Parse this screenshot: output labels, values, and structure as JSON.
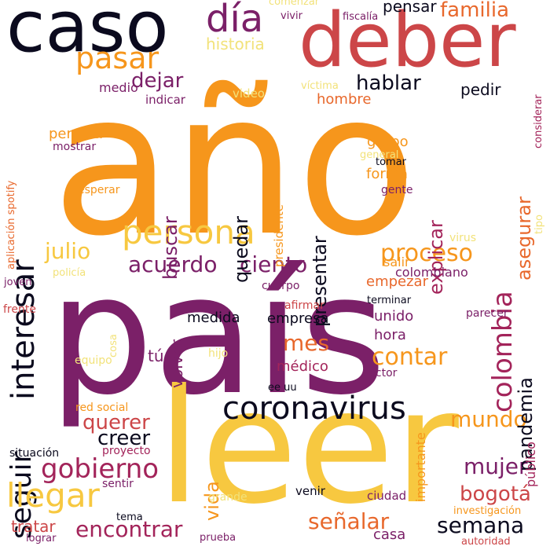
{
  "palette": {
    "dark": "#0b0a1e",
    "purple": "#7b2068",
    "crimson": "#a3245a",
    "red": "#cc4648",
    "orange": "#e8682c",
    "amber": "#f6961c",
    "yellow": "#f7c840",
    "light": "#f2e27a"
  },
  "words": [
    {
      "text": "año",
      "color": "amber"
    },
    {
      "text": "país",
      "color": "purple"
    },
    {
      "text": "leer",
      "color": "yellow"
    },
    {
      "text": "caso",
      "color": "dark"
    },
    {
      "text": "deber",
      "color": "red"
    },
    {
      "text": "persona",
      "color": "yellow"
    },
    {
      "text": "coronavirus",
      "color": "dark"
    },
    {
      "text": "interesar",
      "color": "dark"
    },
    {
      "text": "día",
      "color": "purple"
    },
    {
      "text": "pasar",
      "color": "amber"
    },
    {
      "text": "familia",
      "color": "orange"
    },
    {
      "text": "colombia",
      "color": "crimson"
    },
    {
      "text": "seguir",
      "color": "dark"
    },
    {
      "text": "llegar",
      "color": "yellow"
    },
    {
      "text": "gobierno",
      "color": "crimson"
    },
    {
      "text": "proceso",
      "color": "amber"
    },
    {
      "text": "contar",
      "color": "amber"
    },
    {
      "text": "acuerdo",
      "color": "purple"
    },
    {
      "text": "ciento",
      "color": "purple"
    },
    {
      "text": "mes",
      "color": "orange"
    },
    {
      "text": "querer",
      "color": "red"
    },
    {
      "text": "creer",
      "color": "dark"
    },
    {
      "text": "mundo",
      "color": "amber"
    },
    {
      "text": "encontrar",
      "color": "crimson"
    },
    {
      "text": "señalar",
      "color": "orange"
    },
    {
      "text": "semana",
      "color": "dark"
    },
    {
      "text": "mujer",
      "color": "purple"
    },
    {
      "text": "bogotá",
      "color": "red"
    },
    {
      "text": "julio",
      "color": "yellow"
    },
    {
      "text": "hablar",
      "color": "dark"
    },
    {
      "text": "dejar",
      "color": "purple"
    },
    {
      "text": "pandemia",
      "color": "dark"
    },
    {
      "text": "explicar",
      "color": "crimson"
    },
    {
      "text": "asegurar",
      "color": "orange"
    },
    {
      "text": "presentar",
      "color": "dark"
    },
    {
      "text": "quedar",
      "color": "dark"
    },
    {
      "text": "buscar",
      "color": "purple"
    },
    {
      "text": "vida",
      "color": "amber"
    },
    {
      "text": "volver",
      "color": "purple"
    },
    {
      "text": "tú",
      "color": "purple"
    },
    {
      "text": "tratar",
      "color": "red"
    },
    {
      "text": "pensar",
      "color": "dark"
    },
    {
      "text": "historia",
      "color": "light"
    },
    {
      "text": "medio",
      "color": "purple"
    },
    {
      "text": "pedir",
      "color": "dark"
    },
    {
      "text": "hombre",
      "color": "orange"
    },
    {
      "text": "indicar",
      "color": "purple"
    },
    {
      "text": "video",
      "color": "light"
    },
    {
      "text": "permitir",
      "color": "amber"
    },
    {
      "text": "mostrar",
      "color": "purple"
    },
    {
      "text": "grupo",
      "color": "amber"
    },
    {
      "text": "forma",
      "color": "amber"
    },
    {
      "text": "tomar",
      "color": "dark"
    },
    {
      "text": "gente",
      "color": "purple"
    },
    {
      "text": "presidente",
      "color": "amber"
    },
    {
      "text": "salir",
      "color": "amber"
    },
    {
      "text": "virus",
      "color": "light"
    },
    {
      "text": "colombiano",
      "color": "purple"
    },
    {
      "text": "empezar",
      "color": "orange"
    },
    {
      "text": "terminar",
      "color": "dark"
    },
    {
      "text": "afirmar",
      "color": "red"
    },
    {
      "text": "medida",
      "color": "dark"
    },
    {
      "text": "empresa",
      "color": "dark"
    },
    {
      "text": "unido",
      "color": "purple"
    },
    {
      "text": "hora",
      "color": "purple"
    },
    {
      "text": "médico",
      "color": "crimson"
    },
    {
      "text": "parecer",
      "color": "purple"
    },
    {
      "text": "sector",
      "color": "purple"
    },
    {
      "text": "ee uu",
      "color": "dark"
    },
    {
      "text": "hijo",
      "color": "light"
    },
    {
      "text": "cosa",
      "color": "light"
    },
    {
      "text": "equipo",
      "color": "light"
    },
    {
      "text": "frente",
      "color": "red"
    },
    {
      "text": "joven",
      "color": "purple"
    },
    {
      "text": "policía",
      "color": "light"
    },
    {
      "text": "cuerpo",
      "color": "purple"
    },
    {
      "text": "red social",
      "color": "amber"
    },
    {
      "text": "situación",
      "color": "dark"
    },
    {
      "text": "proyecto",
      "color": "crimson"
    },
    {
      "text": "sentir",
      "color": "purple"
    },
    {
      "text": "grande",
      "color": "light"
    },
    {
      "text": "venir",
      "color": "dark"
    },
    {
      "text": "ciudad",
      "color": "purple"
    },
    {
      "text": "importante",
      "color": "amber"
    },
    {
      "text": "investigación",
      "color": "amber"
    },
    {
      "text": "público",
      "color": "crimson"
    },
    {
      "text": "tema",
      "color": "dark"
    },
    {
      "text": "lograr",
      "color": "purple"
    },
    {
      "text": "prueba",
      "color": "purple"
    },
    {
      "text": "casa",
      "color": "purple"
    },
    {
      "text": "autoridad",
      "color": "red"
    },
    {
      "text": "comenzar",
      "color": "light"
    },
    {
      "text": "vivir",
      "color": "purple"
    },
    {
      "text": "fiscalía",
      "color": "purple"
    },
    {
      "text": "víctima",
      "color": "light"
    },
    {
      "text": "considerar",
      "color": "crimson"
    },
    {
      "text": "aplicación spotify",
      "color": "orange"
    },
    {
      "text": "esperar",
      "color": "amber"
    },
    {
      "text": "general",
      "color": "light"
    },
    {
      "text": "tipo",
      "color": "light"
    }
  ]
}
